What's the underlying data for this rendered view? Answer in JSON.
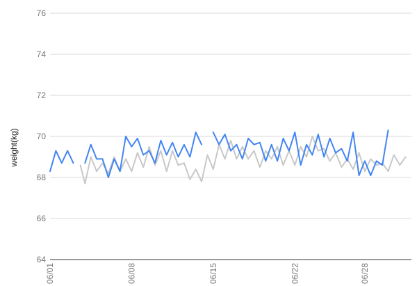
{
  "chart_data": {
    "type": "line",
    "title": "",
    "xlabel": "",
    "ylabel": "weight(kg)",
    "ylim": [
      64,
      76
    ],
    "y_ticks": [
      "64",
      "66",
      "68",
      "70",
      "72",
      "74",
      "76"
    ],
    "y_tick_values": [
      64,
      66,
      68,
      70,
      72,
      74,
      76
    ],
    "x_ticks": [
      {
        "label": "06/01",
        "day": 1
      },
      {
        "label": "06/08",
        "day": 8
      },
      {
        "label": "06/15",
        "day": 15
      },
      {
        "label": "06/22",
        "day": 22
      },
      {
        "label": "06/28",
        "day": 28
      }
    ],
    "grid": true,
    "colors": {
      "series_1": "#4285f4",
      "series_2": "#c8c8c8",
      "grid": "#d9d9d9",
      "tick": "#757575"
    },
    "series": [
      {
        "values": [
          [
            1.0,
            68.3
          ],
          [
            1.5,
            69.3
          ],
          [
            2.0,
            68.7
          ],
          [
            2.5,
            69.3
          ],
          [
            3.0,
            68.7
          ],
          null,
          [
            4.0,
            68.7
          ],
          [
            4.5,
            69.6
          ],
          [
            5.0,
            68.9
          ],
          [
            5.5,
            68.9
          ],
          [
            6.0,
            68.0
          ],
          [
            6.5,
            68.9
          ],
          [
            7.0,
            68.3
          ],
          [
            7.5,
            70.0
          ],
          [
            8.0,
            69.5
          ],
          [
            8.5,
            69.9
          ],
          [
            9.0,
            69.1
          ],
          [
            9.5,
            69.3
          ],
          [
            10.0,
            68.7
          ],
          [
            10.5,
            69.8
          ],
          [
            11.0,
            69.1
          ],
          [
            11.5,
            69.7
          ],
          [
            12.0,
            69.0
          ],
          [
            12.5,
            69.6
          ],
          [
            13.0,
            69.0
          ],
          [
            13.5,
            70.2
          ],
          [
            14.0,
            69.6
          ],
          null,
          [
            15.0,
            70.2
          ],
          [
            15.5,
            69.6
          ],
          [
            16.0,
            70.1
          ],
          [
            16.5,
            69.3
          ],
          [
            17.0,
            69.6
          ],
          [
            17.5,
            68.9
          ],
          [
            18.0,
            69.9
          ],
          [
            18.5,
            69.6
          ],
          [
            19.0,
            69.7
          ],
          [
            19.5,
            68.8
          ],
          [
            20.0,
            69.6
          ],
          [
            20.5,
            68.8
          ],
          [
            21.0,
            69.9
          ],
          [
            21.5,
            69.3
          ],
          [
            22.0,
            70.2
          ],
          [
            22.5,
            68.6
          ],
          [
            23.0,
            69.6
          ],
          [
            23.5,
            69.1
          ],
          [
            24.0,
            70.1
          ],
          [
            24.5,
            69.0
          ],
          [
            25.0,
            69.9
          ],
          [
            25.5,
            69.2
          ],
          [
            26.0,
            69.4
          ],
          [
            26.5,
            68.8
          ],
          [
            27.0,
            70.2
          ],
          [
            27.5,
            68.1
          ],
          [
            28.0,
            68.8
          ],
          [
            28.5,
            68.1
          ],
          [
            29.0,
            68.8
          ],
          [
            29.5,
            68.6
          ],
          [
            30.0,
            70.3
          ]
        ]
      },
      {
        "values": [
          [
            3.6,
            68.6
          ],
          [
            4.0,
            67.7
          ],
          [
            4.5,
            69.0
          ],
          [
            5.0,
            68.3
          ],
          [
            5.5,
            68.7
          ],
          [
            6.0,
            68.2
          ],
          [
            6.5,
            69.0
          ],
          [
            7.0,
            68.3
          ],
          [
            7.5,
            68.9
          ],
          [
            8.0,
            68.3
          ],
          [
            8.5,
            69.2
          ],
          [
            9.0,
            68.5
          ],
          [
            9.5,
            69.5
          ],
          [
            10.0,
            68.6
          ],
          [
            10.5,
            69.3
          ],
          [
            11.0,
            68.3
          ],
          [
            11.5,
            69.3
          ],
          [
            12.0,
            68.6
          ],
          [
            12.5,
            68.7
          ],
          [
            13.0,
            67.9
          ],
          [
            13.5,
            68.4
          ],
          [
            14.0,
            67.8
          ],
          [
            14.5,
            69.1
          ],
          [
            15.0,
            68.4
          ],
          [
            15.5,
            69.6
          ],
          [
            16.0,
            68.9
          ],
          [
            16.5,
            69.8
          ],
          [
            17.0,
            68.9
          ],
          [
            17.5,
            69.5
          ],
          [
            18.0,
            68.9
          ],
          [
            18.5,
            69.3
          ],
          [
            19.0,
            68.5
          ],
          [
            19.5,
            69.3
          ],
          [
            20.0,
            68.9
          ],
          [
            20.5,
            69.5
          ],
          [
            21.0,
            68.6
          ],
          [
            21.5,
            69.3
          ],
          [
            22.0,
            68.6
          ],
          [
            22.5,
            69.5
          ],
          [
            23.0,
            69.0
          ],
          [
            23.5,
            70.0
          ],
          [
            24.0,
            69.3
          ],
          [
            24.5,
            69.4
          ],
          [
            25.0,
            68.8
          ],
          [
            25.5,
            69.2
          ],
          [
            26.0,
            68.5
          ],
          [
            26.5,
            68.9
          ],
          [
            27.0,
            68.4
          ],
          [
            27.5,
            69.2
          ],
          [
            28.0,
            68.3
          ],
          [
            28.5,
            68.9
          ],
          [
            29.0,
            68.6
          ],
          [
            29.5,
            68.7
          ],
          [
            30.0,
            68.3
          ],
          [
            30.5,
            69.1
          ],
          [
            31.0,
            68.6
          ],
          [
            31.5,
            69.0
          ]
        ]
      }
    ]
  }
}
